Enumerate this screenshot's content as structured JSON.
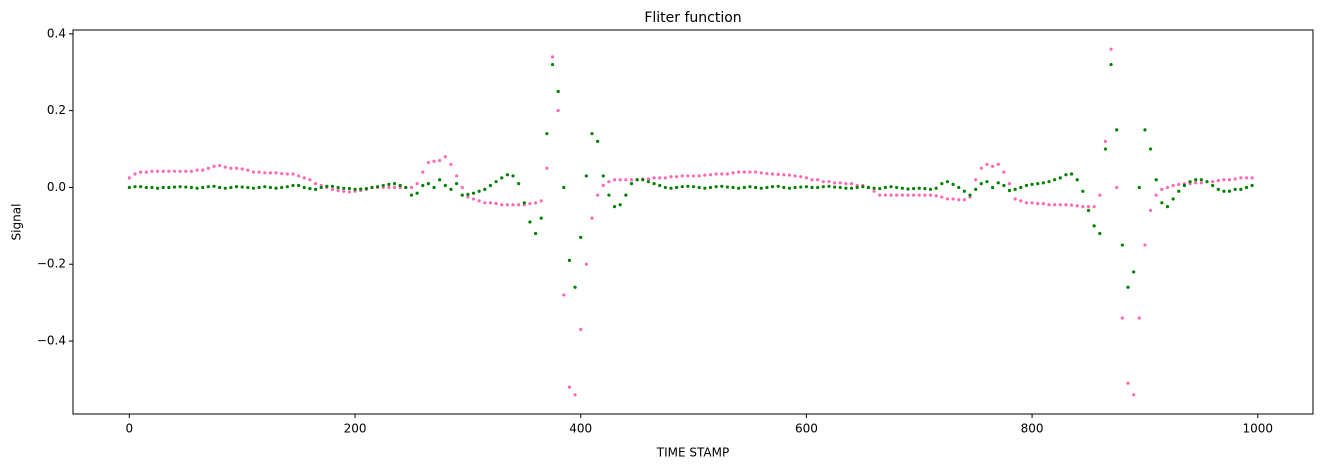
{
  "chart_data": {
    "type": "scatter",
    "title": "Fliter function",
    "x_label": "TIME STAMP",
    "y_label": "Signal",
    "x": [
      0,
      5,
      10,
      15,
      20,
      25,
      30,
      35,
      40,
      45,
      50,
      55,
      60,
      65,
      70,
      75,
      80,
      85,
      90,
      95,
      100,
      105,
      110,
      115,
      120,
      125,
      130,
      135,
      140,
      145,
      150,
      155,
      160,
      165,
      170,
      175,
      180,
      185,
      190,
      195,
      200,
      205,
      210,
      215,
      220,
      225,
      230,
      235,
      240,
      245,
      250,
      255,
      260,
      265,
      270,
      275,
      280,
      285,
      290,
      295,
      300,
      305,
      310,
      315,
      320,
      325,
      330,
      335,
      340,
      345,
      350,
      355,
      360,
      365,
      370,
      375,
      380,
      385,
      390,
      395,
      400,
      405,
      410,
      415,
      420,
      425,
      430,
      435,
      440,
      445,
      450,
      455,
      460,
      465,
      470,
      475,
      480,
      485,
      490,
      495,
      500,
      505,
      510,
      515,
      520,
      525,
      530,
      535,
      540,
      545,
      550,
      555,
      560,
      565,
      570,
      575,
      580,
      585,
      590,
      595,
      600,
      605,
      610,
      615,
      620,
      625,
      630,
      635,
      640,
      645,
      650,
      655,
      660,
      665,
      670,
      675,
      680,
      685,
      690,
      695,
      700,
      705,
      710,
      715,
      720,
      725,
      730,
      735,
      740,
      745,
      750,
      755,
      760,
      765,
      770,
      775,
      780,
      785,
      790,
      795,
      800,
      805,
      810,
      815,
      820,
      825,
      830,
      835,
      840,
      845,
      850,
      855,
      860,
      865,
      870,
      875,
      880,
      885,
      890,
      895,
      900,
      905,
      910,
      915,
      920,
      925,
      930,
      935,
      940,
      945,
      950,
      955,
      960,
      965,
      970,
      975,
      980,
      985,
      990,
      995
    ],
    "series": [
      {
        "color": "#ff69b4",
        "values": [
          0.025,
          0.035,
          0.04,
          0.04,
          0.042,
          0.042,
          0.042,
          0.042,
          0.042,
          0.042,
          0.042,
          0.042,
          0.045,
          0.045,
          0.05,
          0.055,
          0.057,
          0.053,
          0.05,
          0.05,
          0.048,
          0.045,
          0.04,
          0.04,
          0.038,
          0.038,
          0.038,
          0.036,
          0.035,
          0.035,
          0.03,
          0.025,
          0.02,
          0.01,
          0.005,
          0,
          -0.005,
          -0.008,
          -0.01,
          -0.012,
          -0.01,
          -0.008,
          -0.005,
          0,
          0,
          0,
          0,
          0,
          0,
          0,
          0,
          0.01,
          0.04,
          0.065,
          0.068,
          0.07,
          0.08,
          0.06,
          0.03,
          0,
          -0.025,
          -0.03,
          -0.035,
          -0.04,
          -0.04,
          -0.042,
          -0.045,
          -0.045,
          -0.045,
          -0.045,
          -0.045,
          -0.042,
          -0.04,
          -0.035,
          0.05,
          0.34,
          0.2,
          -0.28,
          -0.52,
          -0.54,
          -0.37,
          -0.2,
          -0.08,
          -0.02,
          0.005,
          0.015,
          0.02,
          0.02,
          0.02,
          0.02,
          0.02,
          0.022,
          0.022,
          0.025,
          0.025,
          0.025,
          0.028,
          0.028,
          0.03,
          0.03,
          0.03,
          0.03,
          0.032,
          0.033,
          0.035,
          0.035,
          0.035,
          0.038,
          0.04,
          0.04,
          0.04,
          0.04,
          0.038,
          0.036,
          0.035,
          0.034,
          0.033,
          0.032,
          0.03,
          0.028,
          0.025,
          0.02,
          0.02,
          0.015,
          0.015,
          0.012,
          0.012,
          0.01,
          0.01,
          0.005,
          0.005,
          0,
          -0.01,
          -0.02,
          -0.02,
          -0.02,
          -0.02,
          -0.02,
          -0.02,
          -0.02,
          -0.02,
          -0.02,
          -0.02,
          -0.022,
          -0.025,
          -0.03,
          -0.03,
          -0.032,
          -0.032,
          -0.025,
          0.02,
          0.05,
          0.06,
          0.055,
          0.06,
          0.04,
          0.01,
          -0.03,
          -0.035,
          -0.04,
          -0.04,
          -0.042,
          -0.042,
          -0.045,
          -0.045,
          -0.045,
          -0.045,
          -0.046,
          -0.048,
          -0.05,
          -0.05,
          -0.05,
          -0.02,
          0.12,
          0.36,
          0,
          -0.34,
          -0.51,
          -0.54,
          -0.34,
          -0.15,
          -0.06,
          -0.02,
          -0.005,
          0,
          0.005,
          0.008,
          0.01,
          0.01,
          0.012,
          0.012,
          0.015,
          0.015,
          0.018,
          0.02,
          0.02,
          0.022,
          0.025,
          0.025,
          0.025
        ]
      },
      {
        "color": "#008000",
        "values": [
          0,
          0.002,
          0.002,
          0,
          0,
          -0.002,
          0,
          0,
          0.001,
          0.002,
          0.001,
          0,
          -0.002,
          0,
          0.002,
          0.003,
          0,
          -0.002,
          0,
          0.002,
          0.001,
          0,
          -0.002,
          0,
          0.002,
          0,
          -0.002,
          0,
          0.002,
          0.005,
          0.005,
          0,
          -0.003,
          -0.005,
          0,
          0.003,
          0.003,
          0,
          -0.002,
          -0.003,
          -0.005,
          -0.004,
          -0.003,
          0,
          0.002,
          0.005,
          0.008,
          0.01,
          0.005,
          0,
          -0.02,
          -0.015,
          0.005,
          0.01,
          0,
          0.02,
          0.005,
          -0.005,
          0.01,
          -0.02,
          -0.018,
          -0.015,
          -0.01,
          -0.005,
          0.005,
          0.015,
          0.025,
          0.033,
          0.03,
          0.01,
          -0.04,
          -0.09,
          -0.12,
          -0.08,
          0.14,
          0.32,
          0.25,
          0,
          -0.19,
          -0.26,
          -0.13,
          0.03,
          0.14,
          0.12,
          0.03,
          -0.02,
          -0.05,
          -0.045,
          -0.02,
          0.01,
          0.02,
          0.02,
          0.015,
          0.01,
          0.005,
          0,
          -0.002,
          0,
          0.002,
          0.003,
          0.002,
          0,
          -0.002,
          0,
          0.002,
          0.003,
          0.001,
          0,
          -0.002,
          0,
          0.002,
          0,
          -0.002,
          0,
          0.002,
          0.003,
          0,
          -0.002,
          0,
          0.001,
          0.002,
          0,
          0,
          0.002,
          0.003,
          0.001,
          0,
          -0.002,
          -0.002,
          0,
          0.002,
          0,
          -0.002,
          -0.003,
          0,
          0.002,
          0,
          -0.002,
          -0.004,
          -0.003,
          -0.002,
          -0.003,
          -0.005,
          -0.002,
          0.01,
          0.015,
          0.008,
          0,
          -0.01,
          -0.02,
          -0.005,
          0.01,
          0.015,
          0,
          0.012,
          0.005,
          -0.008,
          -0.005,
          0,
          0.005,
          0.008,
          0.01,
          0.012,
          0.015,
          0.02,
          0.025,
          0.033,
          0.035,
          0.02,
          -0.01,
          -0.06,
          -0.1,
          -0.12,
          0.1,
          0.32,
          0.15,
          -0.15,
          -0.26,
          -0.22,
          0,
          0.15,
          0.1,
          0.02,
          -0.04,
          -0.05,
          -0.03,
          -0.01,
          0.005,
          0.015,
          0.02,
          0.02,
          0.015,
          0.005,
          -0.005,
          -0.01,
          -0.01,
          -0.005,
          -0.005,
          0,
          0.005
        ]
      }
    ],
    "xlim": [
      -49.95,
      1048.95
    ],
    "xticks": [
      0,
      200,
      400,
      600,
      800,
      1000
    ],
    "ylim": [
      -0.59,
      0.41
    ],
    "yticks": [
      {
        "value": -0.4,
        "label": "−0.4"
      },
      {
        "value": -0.2,
        "label": "−0.2"
      },
      {
        "value": 0,
        "label": "0.0"
      },
      0.2,
      0.4
    ]
  }
}
